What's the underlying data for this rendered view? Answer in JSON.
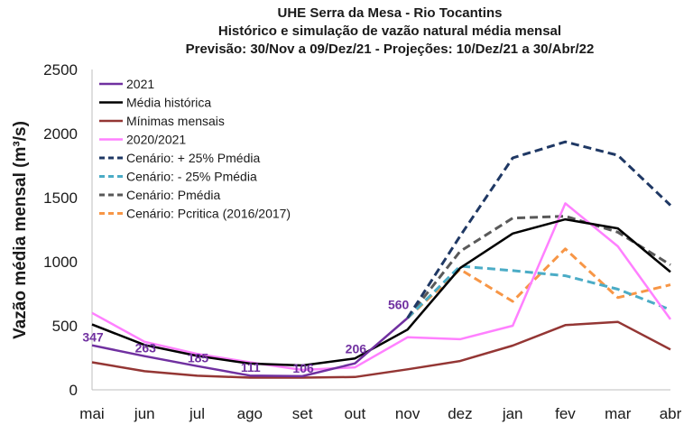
{
  "chart_data": {
    "type": "line",
    "title": [
      "UHE Serra da Mesa - Rio Tocantins",
      "Histórico e simulação de vazão natural média mensal",
      "Previsão: 30/Nov a 09/Dez/21 - Projeções:  10/Dez/21 a 30/Abr/22"
    ],
    "xlabel": "",
    "ylabel": "Vazão média mensal (m³/s)",
    "ylim": [
      0,
      2500
    ],
    "yticks": [
      0,
      500,
      1000,
      1500,
      2000,
      2500
    ],
    "categories": [
      "mai",
      "jun",
      "jul",
      "ago",
      "set",
      "out",
      "nov",
      "dez",
      "jan",
      "fev",
      "mar",
      "abr"
    ],
    "series": [
      {
        "name": "2021",
        "color": "#7030a0",
        "dash": false,
        "values": [
          347,
          263,
          185,
          111,
          106,
          206,
          560,
          null,
          null,
          null,
          null,
          null
        ]
      },
      {
        "name": "Média histórica",
        "color": "#000000",
        "dash": false,
        "values": [
          510,
          350,
          265,
          205,
          190,
          245,
          470,
          950,
          1220,
          1330,
          1260,
          920
        ]
      },
      {
        "name": "Mínimas mensais",
        "color": "#943634",
        "dash": false,
        "values": [
          215,
          145,
          110,
          95,
          95,
          100,
          160,
          225,
          345,
          505,
          530,
          315
        ]
      },
      {
        "name": "2020/2021",
        "color": "#ff80ff",
        "dash": false,
        "values": [
          600,
          375,
          280,
          215,
          155,
          175,
          410,
          395,
          500,
          1455,
          1120,
          550
        ]
      },
      {
        "name": "Cenário: + 25% Pmédia",
        "color": "#1f3864",
        "dash": true,
        "values": [
          null,
          null,
          null,
          null,
          null,
          null,
          560,
          1200,
          1810,
          1935,
          1830,
          1440
        ]
      },
      {
        "name": "Cenário: - 25% Pmédia",
        "color": "#4bacc6",
        "dash": true,
        "values": [
          null,
          null,
          null,
          null,
          null,
          null,
          560,
          965,
          930,
          890,
          785,
          625
        ]
      },
      {
        "name": "Cenário: Pmédia",
        "color": "#595959",
        "dash": true,
        "values": [
          null,
          null,
          null,
          null,
          null,
          null,
          560,
          1080,
          1340,
          1355,
          1230,
          975
        ]
      },
      {
        "name": "Cenário: Pcritica (2016/2017)",
        "color": "#f79646",
        "dash": true,
        "values": [
          null,
          null,
          null,
          null,
          null,
          null,
          560,
          940,
          690,
          1100,
          720,
          820
        ]
      }
    ],
    "data_labels": [
      {
        "series": "2021",
        "index": 0,
        "text": "347"
      },
      {
        "series": "2021",
        "index": 1,
        "text": "263"
      },
      {
        "series": "2021",
        "index": 2,
        "text": "185"
      },
      {
        "series": "2021",
        "index": 3,
        "text": "111"
      },
      {
        "series": "2021",
        "index": 4,
        "text": "106"
      },
      {
        "series": "2021",
        "index": 5,
        "text": "206"
      },
      {
        "series": "2021",
        "index": 6,
        "text": "560"
      }
    ],
    "legend": "top-left",
    "grid": false
  }
}
